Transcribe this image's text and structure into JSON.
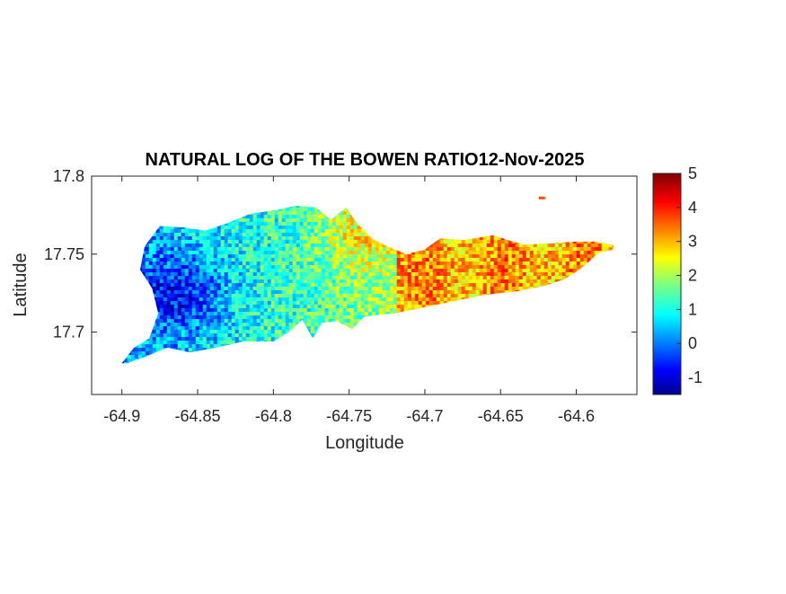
{
  "chart_data": {
    "type": "heatmap",
    "title": "NATURAL LOG OF THE BOWEN RATIO12-Nov-2025",
    "xlabel": "Longitude",
    "ylabel": "Latitude",
    "xlim": [
      -64.92,
      -64.56
    ],
    "ylim": [
      17.66,
      17.8
    ],
    "xticks": [
      -64.9,
      -64.85,
      -64.8,
      -64.75,
      -64.7,
      -64.65,
      -64.6
    ],
    "xtick_labels": [
      "-64.9",
      "-64.85",
      "-64.8",
      "-64.75",
      "-64.7",
      "-64.65",
      "-64.6"
    ],
    "yticks": [
      17.7,
      17.75,
      17.8
    ],
    "ytick_labels": [
      "17.7",
      "17.75",
      "17.8"
    ],
    "colorbar": {
      "colormap": "jet",
      "range": [
        -1.5,
        5
      ],
      "ticks": [
        -1,
        0,
        1,
        2,
        3,
        4,
        5
      ],
      "tick_labels": [
        "-1",
        "0",
        "1",
        "2",
        "3",
        "4",
        "5"
      ]
    },
    "region_outline": [
      [
        -64.9,
        17.68
      ],
      [
        -64.892,
        17.69
      ],
      [
        -64.882,
        17.696
      ],
      [
        -64.876,
        17.712
      ],
      [
        -64.88,
        17.728
      ],
      [
        -64.888,
        17.74
      ],
      [
        -64.885,
        17.755
      ],
      [
        -64.875,
        17.768
      ],
      [
        -64.858,
        17.767
      ],
      [
        -64.845,
        17.765
      ],
      [
        -64.83,
        17.77
      ],
      [
        -64.815,
        17.776
      ],
      [
        -64.8,
        17.778
      ],
      [
        -64.785,
        17.781
      ],
      [
        -64.772,
        17.78
      ],
      [
        -64.762,
        17.772
      ],
      [
        -64.752,
        17.78
      ],
      [
        -64.745,
        17.77
      ],
      [
        -64.735,
        17.76
      ],
      [
        -64.725,
        17.755
      ],
      [
        -64.712,
        17.75
      ],
      [
        -64.7,
        17.753
      ],
      [
        -64.69,
        17.76
      ],
      [
        -64.675,
        17.759
      ],
      [
        -64.655,
        17.762
      ],
      [
        -64.635,
        17.756
      ],
      [
        -64.615,
        17.757
      ],
      [
        -64.6,
        17.758
      ],
      [
        -64.588,
        17.758
      ],
      [
        -64.576,
        17.756
      ],
      [
        -64.575,
        17.753
      ],
      [
        -64.585,
        17.751
      ],
      [
        -64.592,
        17.745
      ],
      [
        -64.598,
        17.74
      ],
      [
        -64.608,
        17.734
      ],
      [
        -64.62,
        17.73
      ],
      [
        -64.64,
        17.726
      ],
      [
        -64.66,
        17.724
      ],
      [
        -64.68,
        17.72
      ],
      [
        -64.7,
        17.716
      ],
      [
        -64.72,
        17.712
      ],
      [
        -64.74,
        17.71
      ],
      [
        -64.748,
        17.702
      ],
      [
        -64.758,
        17.707
      ],
      [
        -64.768,
        17.706
      ],
      [
        -64.774,
        17.696
      ],
      [
        -64.781,
        17.708
      ],
      [
        -64.79,
        17.7
      ],
      [
        -64.8,
        17.694
      ],
      [
        -64.82,
        17.694
      ],
      [
        -64.838,
        17.69
      ],
      [
        -64.855,
        17.687
      ],
      [
        -64.87,
        17.69
      ],
      [
        -64.885,
        17.684
      ],
      [
        -64.897,
        17.68
      ]
    ],
    "islet": [
      -64.623,
      17.786
    ],
    "value_field": {
      "gradient_west_value": 0.4,
      "gradient_east_value": 3.3,
      "low_center": {
        "lon": -64.865,
        "lat": 17.725,
        "value": -0.3
      },
      "high_bands": [
        {
          "lon_from": -64.72,
          "value": 3.3
        },
        {
          "lon": -64.745,
          "lat": 17.765,
          "value": 3.0
        }
      ]
    }
  }
}
